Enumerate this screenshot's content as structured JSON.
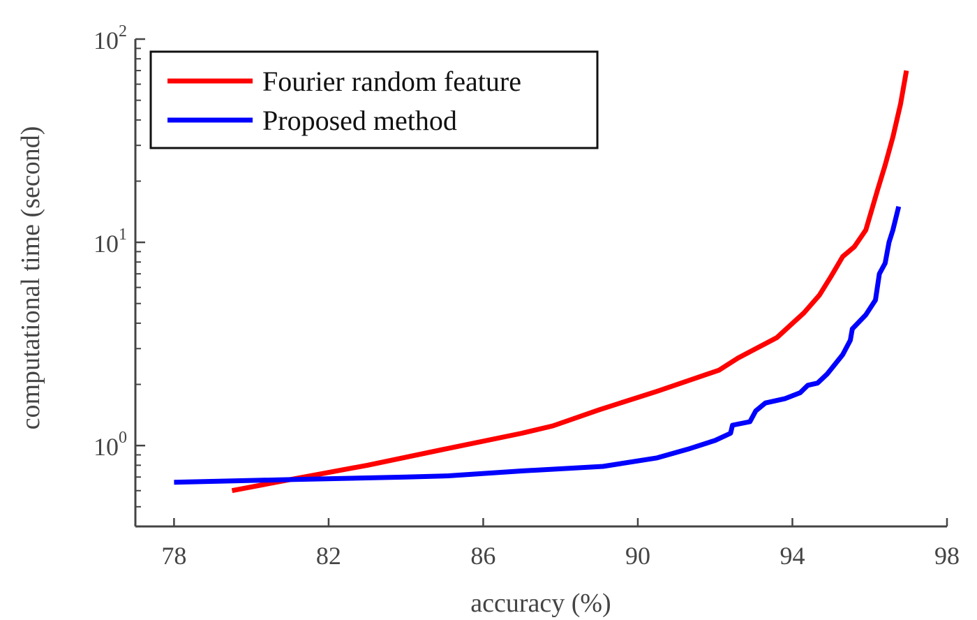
{
  "chart_data": {
    "type": "line",
    "title": "",
    "xlabel": "accuracy (%)",
    "ylabel": "computational time (second)",
    "xlim": [
      77,
      98
    ],
    "ylim": [
      0.4,
      100
    ],
    "yscale": "log",
    "xticks": [
      78,
      82,
      86,
      90,
      94,
      98
    ],
    "xtick_labels": [
      "78",
      "82",
      "86",
      "90",
      "94",
      "98"
    ],
    "yticks": [
      1,
      10,
      100
    ],
    "ytick_labels": [
      {
        "base": "10",
        "exp": "0"
      },
      {
        "base": "10",
        "exp": "1"
      },
      {
        "base": "10",
        "exp": "2"
      }
    ],
    "grid": false,
    "legend": {
      "position": "top-left"
    },
    "series": [
      {
        "name": "Fourier random feature",
        "color": "#ff0000",
        "x": [
          79.5,
          81.0,
          83.0,
          85.0,
          87.0,
          87.8,
          89.0,
          90.5,
          92.1,
          92.6,
          93.6,
          94.3,
          94.7,
          95.0,
          95.3,
          95.6,
          95.9,
          96.2,
          96.4,
          96.6,
          96.8,
          96.95
        ],
        "y": [
          0.6,
          0.68,
          0.8,
          0.96,
          1.15,
          1.25,
          1.5,
          1.85,
          2.35,
          2.7,
          3.4,
          4.5,
          5.5,
          6.8,
          8.5,
          9.5,
          11.5,
          18.0,
          24.0,
          33.0,
          48.0,
          70.0
        ]
      },
      {
        "name": "Proposed method",
        "color": "#0000ff",
        "x": [
          78.0,
          81.0,
          84.0,
          85.1,
          87.0,
          89.1,
          90.5,
          91.3,
          92.0,
          92.4,
          92.45,
          92.9,
          93.05,
          93.3,
          93.8,
          94.2,
          94.4,
          94.65,
          94.9,
          95.3,
          95.5,
          95.55,
          95.9,
          96.15,
          96.25,
          96.4,
          96.5,
          96.6,
          96.75
        ],
        "y": [
          0.66,
          0.68,
          0.7,
          0.71,
          0.75,
          0.79,
          0.87,
          0.96,
          1.06,
          1.15,
          1.26,
          1.31,
          1.48,
          1.62,
          1.7,
          1.82,
          1.98,
          2.03,
          2.25,
          2.8,
          3.3,
          3.75,
          4.4,
          5.2,
          7.0,
          7.9,
          10.0,
          11.5,
          15.0
        ]
      }
    ]
  }
}
